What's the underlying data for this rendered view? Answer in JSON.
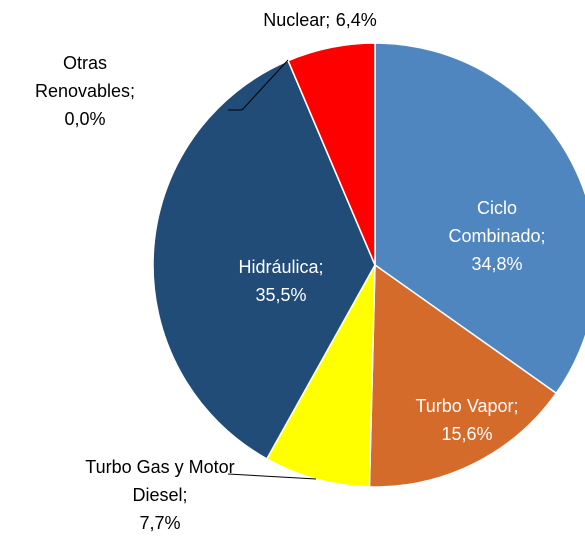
{
  "chart_data": {
    "type": "pie",
    "categories": [
      "Ciclo Combinado;",
      "Turbo Vapor;",
      "Turbo Gas y Motor Diesel;",
      "Hidráulica;",
      "Otras Renovables;",
      "Nuclear;"
    ],
    "values": [
      34.8,
      15.6,
      7.7,
      35.5,
      0.0,
      6.4
    ],
    "value_labels": [
      "34,8%",
      "15,6%",
      "7,7%",
      "35,5%",
      "0,0%",
      "6,4%"
    ],
    "colors": [
      "#4f86bf",
      "#d56b2b",
      "#ffff00",
      "#214c78",
      "#77a84a",
      "#ff0000"
    ]
  }
}
